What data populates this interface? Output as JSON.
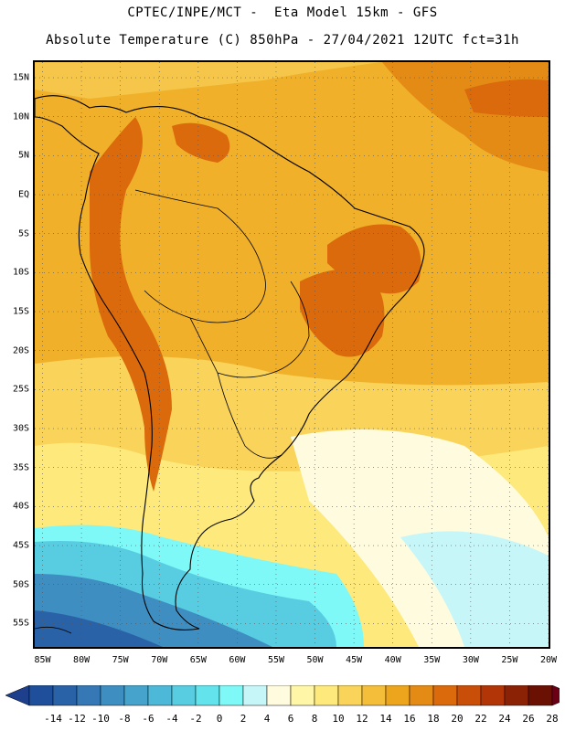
{
  "header": {
    "line1": "CPTEC/INPE/MCT -  Eta Model 15km - GFS",
    "line2": "Absolute Temperature (C) 850hPa - 27/04/2021 12UTC fct=31h"
  },
  "map": {
    "latitude_labels": [
      "15N",
      "10N",
      "5N",
      "EQ",
      "5S",
      "10S",
      "15S",
      "20S",
      "25S",
      "30S",
      "35S",
      "40S",
      "45S",
      "50S",
      "55S"
    ],
    "longitude_labels": [
      "85W",
      "80W",
      "75W",
      "70W",
      "65W",
      "60W",
      "55W",
      "50W",
      "45W",
      "40W",
      "35W",
      "30W",
      "25W",
      "20W"
    ],
    "domain": {
      "lon_min": -86,
      "lon_max": -20,
      "lat_min": -58,
      "lat_max": 17
    }
  },
  "colorbar": {
    "labels": [
      "-14",
      "-12",
      "-10",
      "-8",
      "-6",
      "-4",
      "-2",
      "0",
      "2",
      "4",
      "6",
      "8",
      "10",
      "12",
      "14",
      "16",
      "18",
      "20",
      "22",
      "24",
      "26",
      "28"
    ],
    "colors": [
      "#1f4f9a",
      "#2a62a8",
      "#3678b6",
      "#3f8ec2",
      "#46a3cc",
      "#4db8d7",
      "#58cde2",
      "#63e3ec",
      "#7ff8f8",
      "#c7f6f8",
      "#fffbdf",
      "#fff6a8",
      "#fde97c",
      "#f9d35a",
      "#f4bd3a",
      "#eda51e",
      "#e48b15",
      "#da6a0c",
      "#c94e08",
      "#b13506",
      "#8c2205",
      "#6b1104"
    ],
    "under_color": "#1e3f8c",
    "over_color": "#6b0014"
  }
}
